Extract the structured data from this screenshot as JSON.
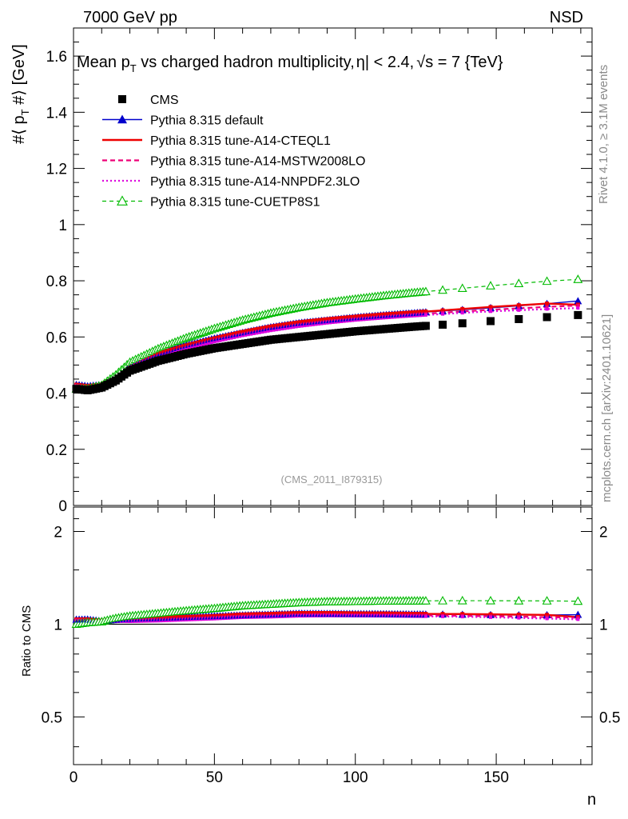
{
  "header": {
    "energy_label": "7000 GeV pp",
    "process_label": "NSD"
  },
  "side_labels": {
    "rivet": "Rivet 4.1.0, ≥ 3.1M events",
    "mcplots": "mcplots.cern.ch [arXiv:2401.10621]"
  },
  "chart_data": [
    {
      "type": "scatter",
      "title": "Mean p_T vs charged hadron multiplicity, |η| < 2.4, √s = 7 {TeV}",
      "title_parts": {
        "prefix": "Mean p",
        "sub": "T",
        "rest": " vs charged hadron multiplicity,",
        "eta": "η| < 2.4,",
        "sqrt": "√",
        "tail": "s = 7 {TeV}"
      },
      "ylabel_parts": {
        "a": "#⟨ p",
        "sub": "T",
        "b": " #⟩ [GeV]"
      },
      "xlabel": "n",
      "xlim": [
        0,
        184
      ],
      "ylim": [
        0,
        1.7
      ],
      "yticks": [
        0,
        0.2,
        0.4,
        0.6,
        0.8,
        1,
        1.2,
        1.4,
        1.6
      ],
      "ytick_labels": [
        "0",
        "0.2",
        "0.4",
        "0.6",
        "0.8",
        "1",
        "1.2",
        "1.4",
        "1.6"
      ],
      "watermark": "(CMS_2011_I879315)",
      "legend_position": "top-left",
      "series": [
        {
          "name": "CMS",
          "style": "data",
          "color": "#000000"
        },
        {
          "name": "Pythia 8.315 default",
          "style": "line-triangle",
          "color": "#0000cc"
        },
        {
          "name": "Pythia 8.315 tune-A14-CTEQL1",
          "style": "solid",
          "color": "#ee0000"
        },
        {
          "name": "Pythia 8.315 tune-A14-MSTW2008LO",
          "style": "dashed",
          "color": "#ee0077"
        },
        {
          "name": "Pythia 8.315 tune-A14-NNPDF2.3LO",
          "style": "dotted",
          "color": "#dd00dd"
        },
        {
          "name": "Pythia 8.315 tune-CUETP8S1",
          "style": "dashed-open-triangle",
          "color": "#00bb00"
        }
      ],
      "anchors": {
        "n": [
          1,
          5,
          10,
          15,
          20,
          30,
          40,
          50,
          60,
          70,
          80,
          90,
          100,
          110,
          120,
          130,
          140,
          150,
          160,
          170,
          179
        ],
        "CMS": [
          0.415,
          0.41,
          0.42,
          0.445,
          0.48,
          0.515,
          0.54,
          0.56,
          0.575,
          0.59,
          0.6,
          0.61,
          0.62,
          0.628,
          0.636,
          0.643,
          0.65,
          0.658,
          0.665,
          0.672,
          0.678
        ],
        "default": [
          0.43,
          0.425,
          0.43,
          0.46,
          0.5,
          0.54,
          0.57,
          0.595,
          0.615,
          0.635,
          0.65,
          0.66,
          0.67,
          0.678,
          0.685,
          0.692,
          0.698,
          0.705,
          0.712,
          0.72,
          0.728
        ],
        "cteql1": [
          0.43,
          0.425,
          0.43,
          0.462,
          0.5,
          0.54,
          0.57,
          0.595,
          0.618,
          0.637,
          0.652,
          0.663,
          0.672,
          0.68,
          0.687,
          0.694,
          0.701,
          0.708,
          0.714,
          0.72,
          0.715
        ],
        "mstw": [
          0.428,
          0.422,
          0.428,
          0.458,
          0.495,
          0.532,
          0.562,
          0.588,
          0.61,
          0.628,
          0.643,
          0.655,
          0.664,
          0.672,
          0.679,
          0.686,
          0.692,
          0.698,
          0.703,
          0.708,
          0.712
        ],
        "nnpdf": [
          0.425,
          0.42,
          0.426,
          0.455,
          0.49,
          0.528,
          0.558,
          0.583,
          0.605,
          0.623,
          0.638,
          0.65,
          0.66,
          0.668,
          0.675,
          0.681,
          0.687,
          0.692,
          0.696,
          0.7,
          0.703
        ],
        "cuetp8s1": [
          0.415,
          0.415,
          0.428,
          0.465,
          0.51,
          0.558,
          0.597,
          0.63,
          0.66,
          0.685,
          0.705,
          0.722,
          0.735,
          0.747,
          0.757,
          0.766,
          0.775,
          0.784,
          0.792,
          0.8,
          0.805
        ]
      }
    },
    {
      "type": "scatter",
      "ylabel": "Ratio to CMS",
      "xlabel": "n",
      "xlim": [
        0,
        184
      ],
      "ylim": [
        0.35,
        2.4
      ],
      "yscale": "log",
      "yticks": [
        0.5,
        1,
        2
      ],
      "ytick_labels": [
        "0.5",
        "1",
        "2"
      ],
      "xticks": [
        0,
        50,
        100,
        150
      ],
      "xtick_labels": [
        "0",
        "50",
        "100",
        "150"
      ],
      "reference_line": 1
    }
  ]
}
